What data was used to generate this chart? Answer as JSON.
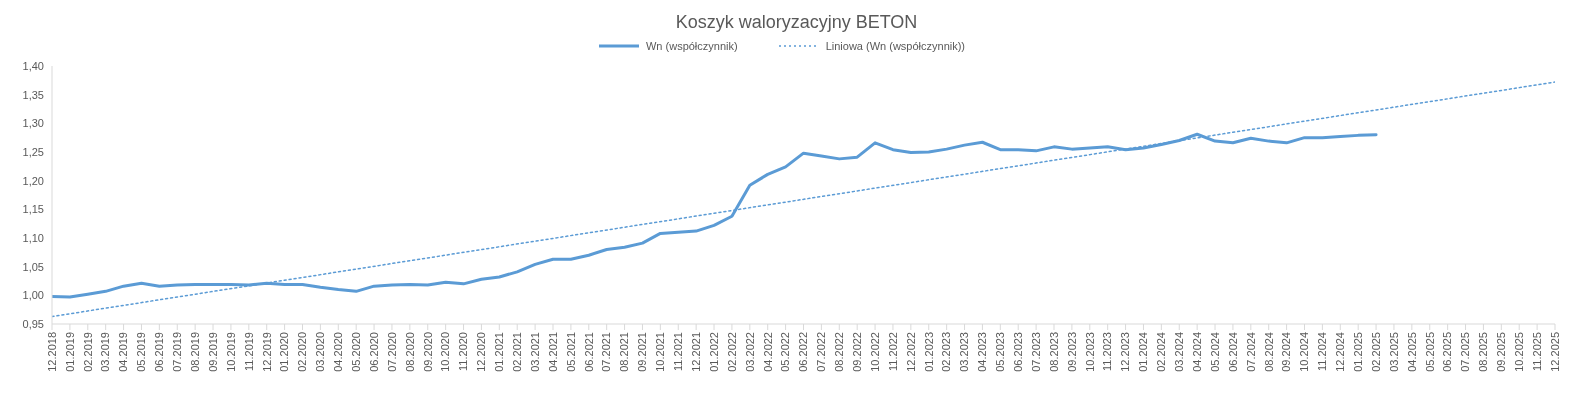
{
  "chart_data": {
    "type": "line",
    "title": "Koszyk waloryzacyjny BETON",
    "categories": [
      "12.2018",
      "01.2019",
      "02.2019",
      "03.2019",
      "04.2019",
      "05.2019",
      "06.2019",
      "07.2019",
      "08.2019",
      "09.2019",
      "10.2019",
      "11.2019",
      "12.2019",
      "01.2020",
      "02.2020",
      "03.2020",
      "04.2020",
      "05.2020",
      "06.2020",
      "07.2020",
      "08.2020",
      "09.2020",
      "10.2020",
      "11.2020",
      "12.2020",
      "01.2021",
      "02.2021",
      "03.2021",
      "04.2021",
      "05.2021",
      "06.2021",
      "07.2021",
      "08.2021",
      "09.2021",
      "10.2021",
      "11.2021",
      "12.2021",
      "01.2022",
      "02.2022",
      "03.2022",
      "04.2022",
      "05.2022",
      "06.2022",
      "07.2022",
      "08.2022",
      "09.2022",
      "10.2022",
      "11.2022",
      "12.2022",
      "01.2023",
      "02.2023",
      "03.2023",
      "04.2023",
      "05.2023",
      "06.2023",
      "07.2023",
      "08.2023",
      "09.2023",
      "10.2023",
      "11.2023",
      "12.2023",
      "01.2024",
      "02.2024",
      "03.2024",
      "04.2024",
      "05.2024",
      "06.2024",
      "07.2024",
      "08.2024",
      "09.2024",
      "10.2024",
      "11.2024",
      "12.2024",
      "01.2025",
      "02.2025",
      "03.2025",
      "04.2025",
      "05.2025",
      "06.2025",
      "07.2025",
      "08.2025",
      "09.2025",
      "10.2025",
      "11.2025",
      "12.2025"
    ],
    "series": [
      {
        "name": "Wn (współczynnik)",
        "color": "#5b9bd5",
        "line_style": "solid",
        "values": [
          0.998,
          0.997,
          1.002,
          1.007,
          1.016,
          1.021,
          1.016,
          1.018,
          1.019,
          1.019,
          1.019,
          1.018,
          1.021,
          1.019,
          1.019,
          1.014,
          1.01,
          1.007,
          1.016,
          1.018,
          1.019,
          1.018,
          1.023,
          1.02,
          1.028,
          1.032,
          1.041,
          1.054,
          1.063,
          1.063,
          1.07,
          1.08,
          1.084,
          1.091,
          1.108,
          1.11,
          1.112,
          1.122,
          1.138,
          1.192,
          1.211,
          1.224,
          1.248,
          1.243,
          1.238,
          1.241,
          1.266,
          1.254,
          1.249,
          1.25,
          1.255,
          1.262,
          1.267,
          1.254,
          1.254,
          1.252,
          1.259,
          1.255,
          1.257,
          1.259,
          1.254,
          1.257,
          1.263,
          1.27,
          1.281,
          1.269,
          1.266,
          1.274,
          1.269,
          1.266,
          1.275,
          1.275,
          1.277,
          1.279,
          1.28,
          null,
          null,
          null,
          null,
          null,
          null,
          null,
          null,
          null,
          null
        ]
      },
      {
        "name": "Liniowa (Wn (współczynnik))",
        "color": "#5b9bd5",
        "line_style": "dotted",
        "x": [
          "12.2018",
          "12.2025"
        ],
        "values": [
          0.963,
          1.372
        ]
      }
    ],
    "ylim": [
      0.95,
      1.4
    ],
    "yticks": [
      {
        "value": 0.95,
        "label": "0,95"
      },
      {
        "value": 1.0,
        "label": "1,00"
      },
      {
        "value": 1.05,
        "label": "1,05"
      },
      {
        "value": 1.1,
        "label": "1,10"
      },
      {
        "value": 1.15,
        "label": "1,15"
      },
      {
        "value": 1.2,
        "label": "1,20"
      },
      {
        "value": 1.25,
        "label": "1,25"
      },
      {
        "value": 1.3,
        "label": "1,30"
      },
      {
        "value": 1.35,
        "label": "1,35"
      },
      {
        "value": 1.4,
        "label": "1,40"
      }
    ],
    "legend": "top",
    "marker": "none"
  }
}
